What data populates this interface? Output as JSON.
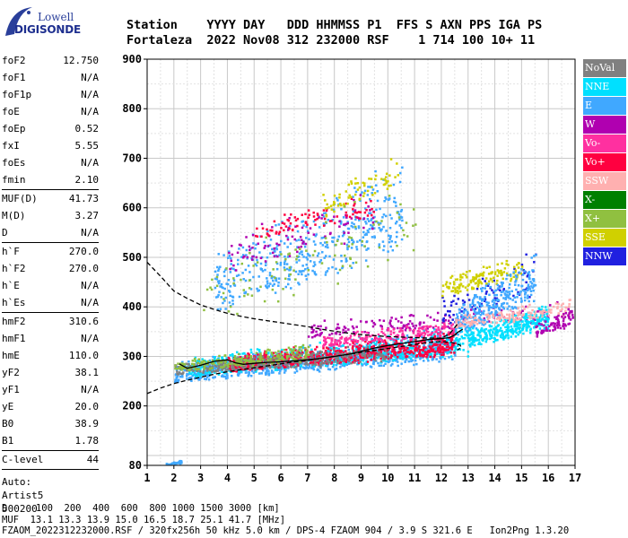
{
  "logo": {
    "line1": "Lowell",
    "line2": "DIGISONDE"
  },
  "header": {
    "row1": "Station    YYYY DAY   DDD HHMMSS P1  FFS S AXN PPS IGA PS",
    "row2": "Fortaleza  2022 Nov08 312 232000 RSF    1 714 100 10+ 11"
  },
  "params": {
    "group1": [
      {
        "label": "foF2",
        "value": "12.750"
      },
      {
        "label": "foF1",
        "value": "N/A"
      },
      {
        "label": "foF1p",
        "value": "N/A"
      },
      {
        "label": "foE",
        "value": "N/A"
      },
      {
        "label": "foEp",
        "value": "0.52"
      },
      {
        "label": "fxI",
        "value": "5.55"
      },
      {
        "label": "foEs",
        "value": "N/A"
      },
      {
        "label": "fmin",
        "value": "2.10"
      }
    ],
    "group2": [
      {
        "label": "MUF(D)",
        "value": "41.73"
      },
      {
        "label": "M(D)",
        "value": "3.27"
      },
      {
        "label": "D",
        "value": "N/A"
      }
    ],
    "group3": [
      {
        "label": "h`F",
        "value": "270.0"
      },
      {
        "label": "h`F2",
        "value": "270.0"
      },
      {
        "label": "h`E",
        "value": "N/A"
      },
      {
        "label": "h`Es",
        "value": "N/A"
      }
    ],
    "group4": [
      {
        "label": "hmF2",
        "value": "310.6"
      },
      {
        "label": "hmF1",
        "value": "N/A"
      },
      {
        "label": "hmE",
        "value": "110.0"
      },
      {
        "label": "yF2",
        "value": "38.1"
      },
      {
        "label": "yF1",
        "value": "N/A"
      },
      {
        "label": "yE",
        "value": "20.0"
      },
      {
        "label": "B0",
        "value": "38.9"
      },
      {
        "label": "B1",
        "value": "1.78"
      }
    ],
    "clevel": {
      "label": "C-level",
      "value": "44"
    },
    "auto": [
      "Auto:",
      "Artist5",
      "500200"
    ]
  },
  "legend": [
    {
      "label": "NoVal",
      "color": "#808080"
    },
    {
      "label": "NNE",
      "color": "#00e0ff"
    },
    {
      "label": "E",
      "color": "#40a8ff"
    },
    {
      "label": "W",
      "color": "#b000b0"
    },
    {
      "label": "Vo-",
      "color": "#ff30a0"
    },
    {
      "label": "Vo+",
      "color": "#ff0040"
    },
    {
      "label": "SSW",
      "color": "#ffb0b0"
    },
    {
      "label": "X-",
      "color": "#008000"
    },
    {
      "label": "X+",
      "color": "#90c040"
    },
    {
      "label": "SSE",
      "color": "#d0d000"
    },
    {
      "label": "NNW",
      "color": "#2020e0"
    }
  ],
  "footer": {
    "d_row": "D     100  200  400  600  800 1000 1500 3000 [km]",
    "muf_row": "MUF  13.1 13.3 13.9 15.0 16.5 18.7 25.1 41.7 [MHz]",
    "file_row": "FZAOM_2022312232000.RSF / 320fx256h 50 kHz 5.0 km / DPS-4 FZAOM 904 / 3.9 S 321.6 E   Ion2Png 1.3.20"
  },
  "chart_data": {
    "type": "scatter",
    "xlim": [
      1,
      17
    ],
    "ylim": [
      80,
      900
    ],
    "xticks": [
      1,
      2,
      3,
      4,
      5,
      6,
      7,
      8,
      9,
      10,
      11,
      12,
      13,
      14,
      15,
      16,
      17
    ],
    "yticks": [
      80,
      200,
      300,
      400,
      500,
      600,
      700,
      800,
      900
    ],
    "grid": true,
    "trace_lower": {
      "x": [
        1.0,
        1.5,
        2.0,
        2.5,
        3.0,
        3.5,
        4.0,
        4.5,
        5.0,
        5.5,
        6.0,
        6.5,
        7.0,
        7.5,
        8.0,
        8.5,
        9.0,
        9.5,
        10.0,
        10.5,
        11.0,
        11.5,
        12.0,
        12.4,
        12.7,
        12.75,
        12.6
      ],
      "y": [
        225,
        236,
        245,
        252,
        258,
        264,
        269,
        273,
        277,
        281,
        285,
        289,
        292,
        296,
        300,
        304,
        308,
        312,
        316,
        320,
        324,
        328,
        330,
        328,
        323,
        318,
        313
      ]
    },
    "trace_upper": {
      "x": [
        1.0,
        1.5,
        2.0,
        2.5,
        3.0,
        3.5,
        4.0,
        4.5,
        5.0,
        5.5,
        6.0,
        6.5,
        7.0,
        7.5,
        8.0,
        8.5,
        9.0,
        9.5,
        10.0,
        10.5,
        11.0,
        11.5,
        12.0,
        12.3,
        12.6
      ],
      "y": [
        490,
        462,
        432,
        417,
        404,
        395,
        387,
        381,
        376,
        372,
        368,
        364,
        360,
        355,
        351,
        347,
        344,
        342,
        340,
        339,
        338,
        337,
        337,
        345,
        365
      ]
    },
    "trace_virtual": {
      "x": [
        2.2,
        2.5,
        3.0,
        3.5,
        4.0,
        4.3,
        4.6,
        5.0,
        5.5,
        6.0,
        6.5,
        7.0,
        7.5,
        8.0,
        8.5,
        9.0,
        9.5,
        10.0,
        10.5,
        11.0,
        11.5,
        12.0,
        12.3,
        12.5,
        12.6,
        12.8
      ],
      "y": [
        285,
        276,
        282,
        290,
        293,
        287,
        284,
        286,
        288,
        289,
        291,
        293,
        296,
        300,
        304,
        310,
        317,
        322,
        326,
        330,
        334,
        336,
        338,
        343,
        348,
        355
      ]
    },
    "echo_clusters": [
      {
        "color": "#40a8ff",
        "x": [
          2.0,
          12.5
        ],
        "y": [
          250,
          360
        ],
        "n": 900
      },
      {
        "color": "#00e0ff",
        "x": [
          2.5,
          13.0
        ],
        "y": [
          260,
          370
        ],
        "n": 600
      },
      {
        "color": "#ff0040",
        "x": [
          4.0,
          12.5
        ],
        "y": [
          270,
          360
        ],
        "n": 700
      },
      {
        "color": "#808080",
        "x": [
          2.0,
          10.0
        ],
        "y": [
          265,
          330
        ],
        "n": 350
      },
      {
        "color": "#90c040",
        "x": [
          2.0,
          7.0
        ],
        "y": [
          270,
          330
        ],
        "n": 200
      },
      {
        "color": "#b000b0",
        "x": [
          7.0,
          16.5
        ],
        "y": [
          340,
          420
        ],
        "n": 170
      },
      {
        "color": "#ff30a0",
        "x": [
          7.5,
          12.5
        ],
        "y": [
          320,
          380
        ],
        "n": 200
      },
      {
        "color": "#2020e0",
        "x": [
          12.0,
          15.5
        ],
        "y": [
          360,
          530
        ],
        "n": 80
      },
      {
        "color": "#d0d000",
        "x": [
          12.0,
          15.0
        ],
        "y": [
          420,
          520
        ],
        "n": 140
      },
      {
        "color": "#40a8ff",
        "x": [
          12.5,
          15.5
        ],
        "y": [
          340,
          520
        ],
        "n": 300
      },
      {
        "color": "#00e0ff",
        "x": [
          13.0,
          16.0
        ],
        "y": [
          320,
          420
        ],
        "n": 350
      },
      {
        "color": "#ffb0b0",
        "x": [
          12.5,
          16.8
        ],
        "y": [
          360,
          420
        ],
        "n": 150
      },
      {
        "color": "#b000b0",
        "x": [
          15.5,
          17.0
        ],
        "y": [
          340,
          410
        ],
        "n": 80
      },
      {
        "color": "#40a8ff",
        "x": [
          3.5,
          10.5
        ],
        "y": [
          390,
          710
        ],
        "n": 450
      },
      {
        "color": "#b000b0",
        "x": [
          4.0,
          9.5
        ],
        "y": [
          470,
          660
        ],
        "n": 90
      },
      {
        "color": "#ff0040",
        "x": [
          5.0,
          9.5
        ],
        "y": [
          540,
          640
        ],
        "n": 80
      },
      {
        "color": "#d0d000",
        "x": [
          7.5,
          10.5
        ],
        "y": [
          580,
          730
        ],
        "n": 70
      },
      {
        "color": "#90c040",
        "x": [
          3.0,
          11.0
        ],
        "y": [
          360,
          700
        ],
        "n": 100
      },
      {
        "color": "#40a8ff",
        "x": [
          1.5,
          2.3
        ],
        "y": [
          80,
          95
        ],
        "n": 25
      }
    ]
  }
}
